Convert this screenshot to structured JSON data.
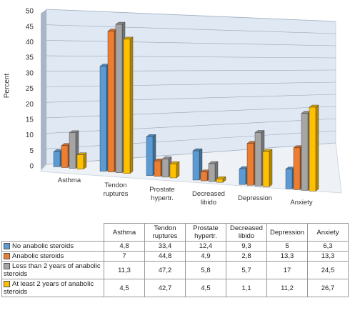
{
  "chart_data": {
    "type": "bar3d",
    "y_label": "Percent",
    "categories": [
      "Asthma",
      "Tendon ruptures",
      "Prostate hypertr.",
      "Decreased libido",
      "Depression",
      "Anxiety"
    ],
    "series": [
      {
        "name": "No anabolic steroids",
        "color": "#5b9bd5",
        "values": [
          4.8,
          33.4,
          12.4,
          9.3,
          5,
          6.3
        ],
        "value_labels": [
          "4,8",
          "33,4",
          "12,4",
          "9,3",
          "5",
          "6,3"
        ]
      },
      {
        "name": "Anabolic steroids",
        "color": "#ed7d31",
        "values": [
          7,
          44.8,
          4.9,
          2.8,
          13.3,
          13.3
        ],
        "value_labels": [
          "7",
          "44,8",
          "4,9",
          "2,8",
          "13,3",
          "13,3"
        ]
      },
      {
        "name": "Less than 2 years of anabolic steroids",
        "color": "#a5a5a5",
        "values": [
          11.3,
          47.2,
          5.8,
          5.7,
          17,
          24.5
        ],
        "value_labels": [
          "11,3",
          "47,2",
          "5,8",
          "5,7",
          "17",
          "24,5"
        ]
      },
      {
        "name": "At least 2 years of anabolic steroids",
        "color": "#ffc000",
        "values": [
          4.5,
          42.7,
          4.5,
          1.1,
          11.2,
          26.7
        ],
        "value_labels": [
          "4,5",
          "42,7",
          "4,5",
          "1,1",
          "11,2",
          "26,7"
        ]
      }
    ],
    "ylim": [
      0,
      50
    ],
    "yticks": [
      0,
      5,
      10,
      15,
      20,
      25,
      30,
      35,
      40,
      45,
      50
    ],
    "grid": true
  }
}
